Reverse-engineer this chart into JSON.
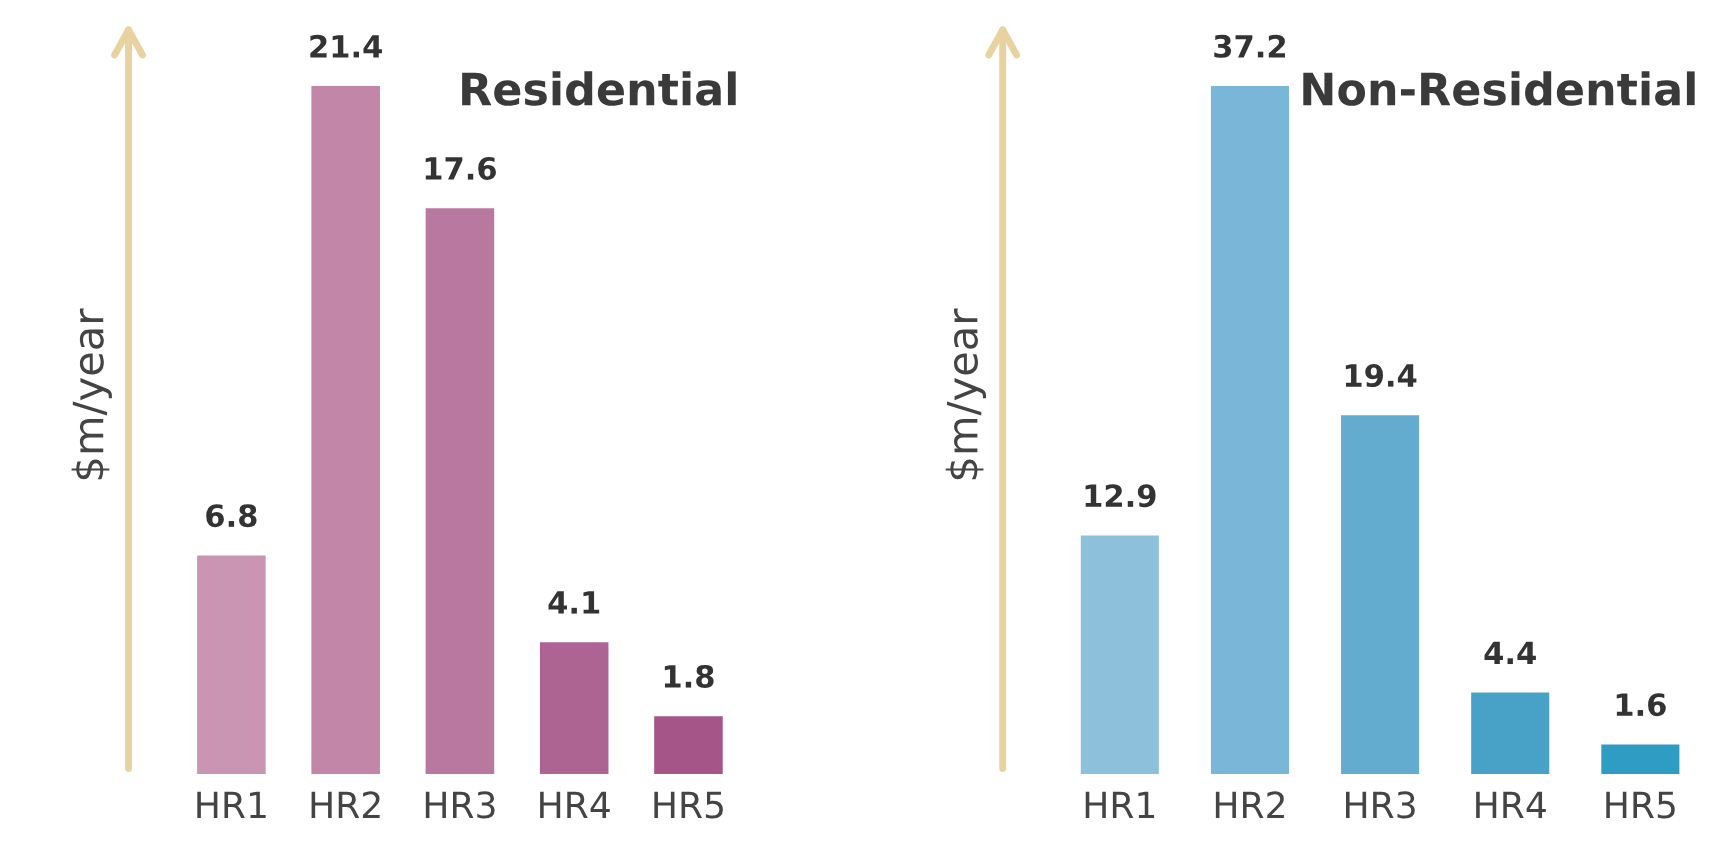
{
  "chart_data": [
    {
      "type": "bar",
      "title": "Residential",
      "ylabel": "$m/year",
      "categories": [
        "HR1",
        "HR2",
        "HR3",
        "HR4",
        "HR5"
      ],
      "values": [
        6.8,
        21.4,
        17.6,
        4.1,
        1.8
      ],
      "colors": [
        "#c995b2",
        "#c186a8",
        "#b8789f",
        "#ad6493",
        "#a65588"
      ],
      "data_labels": true,
      "grid": false,
      "legend": false,
      "tick_labels": "x"
    },
    {
      "type": "bar",
      "title": "Non-Residential",
      "ylabel": "$m/year",
      "categories": [
        "HR1",
        "HR2",
        "HR3",
        "HR4",
        "HR5"
      ],
      "values": [
        12.9,
        37.2,
        19.4,
        4.4,
        1.6
      ],
      "colors": [
        "#8dc1db",
        "#79b6d7",
        "#64abd0",
        "#48a1c7",
        "#2f9cc3"
      ],
      "data_labels": true,
      "grid": false,
      "legend": false,
      "tick_labels": "x"
    }
  ]
}
